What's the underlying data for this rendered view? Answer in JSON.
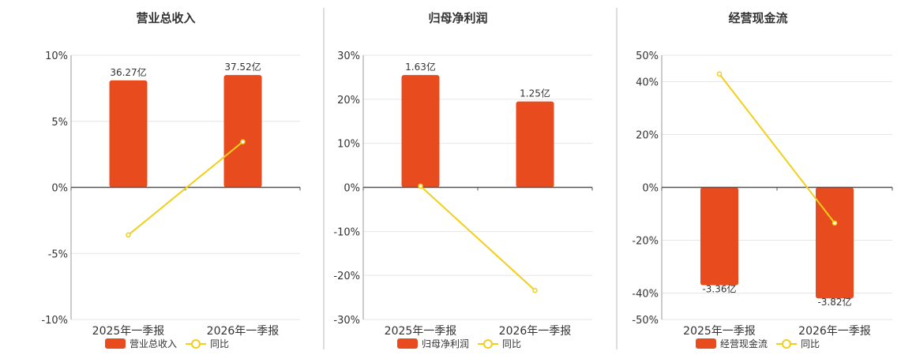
{
  "colors": {
    "bar": "#e84c1e",
    "line": "#f2cf1a",
    "axis": "#555555",
    "grid": "#e6e6e6",
    "divider": "#bbbbbb"
  },
  "chart_data": [
    {
      "type": "bar",
      "title": "营业总收入",
      "categories": [
        "2025年一季报",
        "2026年一季报"
      ],
      "series": [
        {
          "name": "营业总收入",
          "kind": "bar",
          "values": [
            8.1,
            8.5
          ],
          "labels": [
            "36.27亿",
            "37.52亿"
          ]
        },
        {
          "name": "同比",
          "kind": "line",
          "values": [
            -3.6,
            3.45
          ]
        }
      ],
      "ylim": [
        -10,
        10
      ],
      "yticks": [
        10,
        5,
        0,
        -5,
        -10
      ],
      "ytick_labels": [
        "10%",
        "5%",
        "0%",
        "-5%",
        "-10%"
      ],
      "legend": "bottom",
      "grid": true
    },
    {
      "type": "bar",
      "title": "归母净利润",
      "categories": [
        "2025年一季报",
        "2026年一季报"
      ],
      "series": [
        {
          "name": "归母净利润",
          "kind": "bar",
          "values": [
            25.5,
            19.5
          ],
          "labels": [
            "1.63亿",
            "1.25亿"
          ]
        },
        {
          "name": "同比",
          "kind": "line",
          "values": [
            0.3,
            -23.4
          ]
        }
      ],
      "ylim": [
        -30,
        30
      ],
      "yticks": [
        30,
        20,
        10,
        0,
        -10,
        -20,
        -30
      ],
      "ytick_labels": [
        "30%",
        "20%",
        "10%",
        "0%",
        "-10%",
        "-20%",
        "-30%"
      ],
      "legend": "bottom",
      "grid": true
    },
    {
      "type": "bar",
      "title": "经营现金流",
      "categories": [
        "2025年一季报",
        "2026年一季报"
      ],
      "series": [
        {
          "name": "经营现金流",
          "kind": "bar",
          "values": [
            -37.0,
            -42.0
          ],
          "labels": [
            "-3.36亿",
            "-3.82亿"
          ]
        },
        {
          "name": "同比",
          "kind": "line",
          "values": [
            42.9,
            -13.5
          ]
        }
      ],
      "ylim": [
        -50,
        50
      ],
      "yticks": [
        50,
        40,
        20,
        0,
        -20,
        -40,
        -50
      ],
      "ytick_labels": [
        "50%",
        "40%",
        "20%",
        "0%",
        "-20%",
        "-40%",
        "-50%"
      ],
      "legend": "bottom",
      "grid": true
    }
  ]
}
